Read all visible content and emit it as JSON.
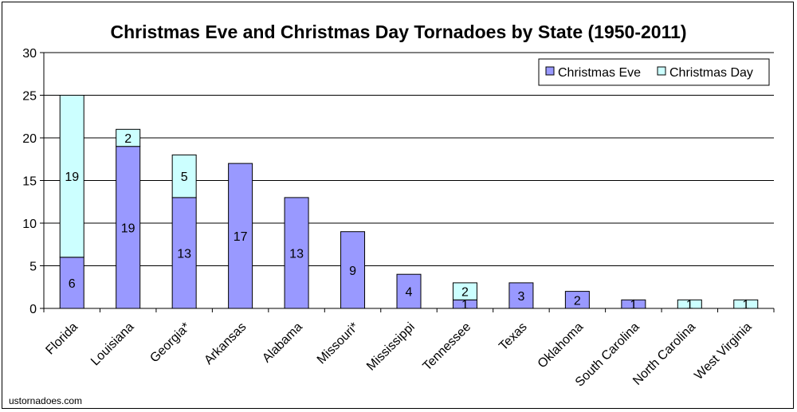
{
  "chart_data": {
    "type": "bar",
    "stacked": true,
    "title": "Christmas Eve and Christmas Day Tornadoes by State (1950-2011)",
    "categories": [
      "Florida",
      "Louisiana",
      "Georgia*",
      "Arkansas",
      "Alabama",
      "Missouri*",
      "Mississippi",
      "Tennessee",
      "Texas",
      "Oklahoma",
      "South Carolina",
      "North Carolina",
      "West Virginia"
    ],
    "series": [
      {
        "name": "Christmas Eve",
        "color": "#9999ff",
        "values": [
          6,
          19,
          13,
          17,
          13,
          9,
          4,
          1,
          3,
          2,
          1,
          0,
          0
        ]
      },
      {
        "name": "Christmas Day",
        "color": "#ccffff",
        "values": [
          19,
          2,
          5,
          0,
          0,
          0,
          0,
          2,
          0,
          0,
          0,
          1,
          1
        ]
      }
    ],
    "ylim": [
      0,
      30
    ],
    "yticks": [
      "0",
      "5",
      "10",
      "15",
      "20",
      "25",
      "30"
    ],
    "grid": true,
    "legend_position": "top-right",
    "source": "ustornadoes.com"
  }
}
